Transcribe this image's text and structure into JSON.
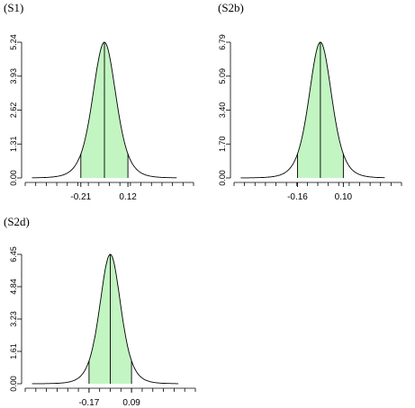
{
  "chart_data": [
    {
      "type": "area",
      "panel_label": "(S1)",
      "ytick_labels": [
        "0.00",
        "1.31",
        "2.62",
        "3.93",
        "5.24"
      ],
      "ylim": [
        0,
        5.24
      ],
      "xtick_labels": [
        "-0.21",
        "0.12"
      ],
      "xlim": [
        -0.6,
        0.58
      ],
      "x_tick_values": [
        -0.21,
        0.12
      ],
      "peak_x": -0.045,
      "peak_density": 5.24,
      "interval": [
        -0.21,
        0.12
      ],
      "fill_color": "#c2f5c2",
      "curve_color": "#000000"
    },
    {
      "type": "area",
      "panel_label": "(S2b)",
      "ytick_labels": [
        "0.00",
        "1.70",
        "3.40",
        "5.09",
        "6.79"
      ],
      "ylim": [
        0,
        6.79
      ],
      "xtick_labels": [
        "-0.16",
        "0.10"
      ],
      "xlim": [
        -0.52,
        0.43
      ],
      "x_tick_values": [
        -0.16,
        0.1
      ],
      "peak_x": -0.03,
      "peak_density": 6.79,
      "interval": [
        -0.16,
        0.1
      ],
      "fill_color": "#c2f5c2",
      "curve_color": "#000000"
    },
    {
      "type": "area",
      "panel_label": "(S2d)",
      "ytick_labels": [
        "0.00",
        "1.61",
        "3.23",
        "4.84",
        "6.45"
      ],
      "ylim": [
        0,
        6.45
      ],
      "xtick_labels": [
        "-0.17",
        "0.09"
      ],
      "xlim": [
        -0.56,
        0.48
      ],
      "x_tick_values": [
        -0.17,
        0.09
      ],
      "peak_x": -0.04,
      "peak_density": 6.45,
      "interval": [
        -0.17,
        0.09
      ],
      "fill_color": "#c2f5c2",
      "curve_color": "#000000"
    }
  ]
}
